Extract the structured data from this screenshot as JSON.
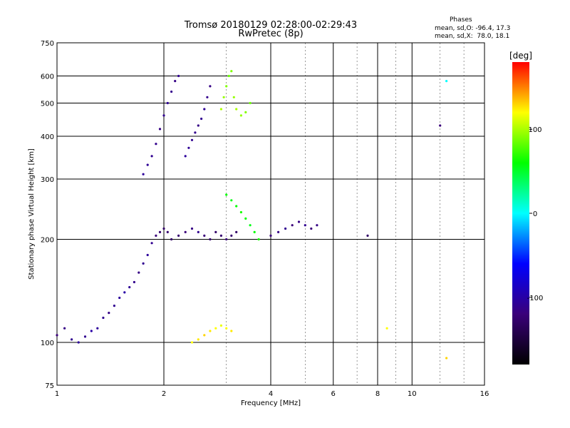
{
  "header": {
    "title": "Tromsø 20180129 02:28:00-02:29:43",
    "subtitle": "RwPretec (8p)"
  },
  "stats": {
    "heading": "Phases",
    "line_o": "mean, sd,O: -96.4, 17.3",
    "line_x": "mean, sd,X:  78.0, 18.1"
  },
  "colorbar": {
    "unit": "[deg]",
    "ticks": [
      "100",
      "0",
      "-100"
    ],
    "tick_values": [
      100,
      0,
      -100
    ],
    "range": [
      -180,
      180
    ],
    "stops": [
      "#000000",
      "#3a007a",
      "#0000ff",
      "#00ffff",
      "#00ff00",
      "#ffff00",
      "#ff0000"
    ]
  },
  "chart_data": {
    "type": "scatter",
    "xlabel": "Frequency [MHz]",
    "ylabel": "Stationary phase Virtual Height [km]",
    "x_scale": "log",
    "y_scale": "log",
    "xlim": [
      1,
      16
    ],
    "ylim": [
      75,
      750
    ],
    "x_ticks": [
      "1",
      "2",
      "4",
      "6",
      "8",
      "10",
      "16"
    ],
    "y_ticks": [
      "750",
      "600",
      "500",
      "400",
      "300",
      "200",
      "100",
      "75"
    ],
    "grid": true,
    "series": [
      {
        "points": [
          [
            1.0,
            105,
            -120
          ],
          [
            1.05,
            110,
            -115
          ],
          [
            1.1,
            102,
            -110
          ],
          [
            1.15,
            100,
            -105
          ],
          [
            1.2,
            104,
            -110
          ],
          [
            1.25,
            108,
            -100
          ],
          [
            1.3,
            110,
            -105
          ],
          [
            1.35,
            118,
            -110
          ],
          [
            1.4,
            122,
            -115
          ],
          [
            1.45,
            128,
            -110
          ],
          [
            1.5,
            135,
            -105
          ],
          [
            1.55,
            140,
            -100
          ],
          [
            1.6,
            145,
            -108
          ],
          [
            1.65,
            150,
            -112
          ],
          [
            1.7,
            160,
            -115
          ],
          [
            1.75,
            170,
            -110
          ],
          [
            1.8,
            180,
            -105
          ],
          [
            1.85,
            195,
            -110
          ],
          [
            1.9,
            205,
            -120
          ],
          [
            1.95,
            210,
            -125
          ],
          [
            2.0,
            215,
            -130
          ],
          [
            2.05,
            210,
            -125
          ]
        ]
      },
      {
        "points": [
          [
            1.75,
            310,
            -105
          ],
          [
            1.8,
            330,
            -108
          ],
          [
            1.85,
            350,
            -110
          ],
          [
            1.9,
            380,
            -112
          ],
          [
            1.95,
            420,
            -115
          ],
          [
            2.0,
            460,
            -110
          ],
          [
            2.05,
            500,
            -108
          ],
          [
            2.1,
            540,
            -112
          ],
          [
            2.15,
            580,
            -115
          ],
          [
            2.2,
            600,
            -110
          ]
        ]
      },
      {
        "points": [
          [
            2.3,
            350,
            -105
          ],
          [
            2.35,
            370,
            -108
          ],
          [
            2.4,
            390,
            -110
          ],
          [
            2.45,
            410,
            -112
          ],
          [
            2.5,
            430,
            -115
          ],
          [
            2.55,
            450,
            -110
          ],
          [
            2.6,
            480,
            -108
          ],
          [
            2.65,
            520,
            -112
          ],
          [
            2.7,
            560,
            -115
          ]
        ]
      },
      {
        "points": [
          [
            2.9,
            480,
            100
          ],
          [
            2.95,
            520,
            95
          ],
          [
            3.0,
            560,
            90
          ],
          [
            3.05,
            600,
            85
          ],
          [
            3.1,
            620,
            90
          ],
          [
            3.15,
            520,
            95
          ],
          [
            3.2,
            480,
            100
          ],
          [
            3.3,
            460,
            95
          ],
          [
            3.4,
            470,
            90
          ],
          [
            3.5,
            500,
            85
          ]
        ]
      },
      {
        "points": [
          [
            2.1,
            200,
            -130
          ],
          [
            2.2,
            205,
            -125
          ],
          [
            2.3,
            210,
            -120
          ],
          [
            2.4,
            215,
            -115
          ],
          [
            2.5,
            210,
            -110
          ],
          [
            2.6,
            205,
            -120
          ],
          [
            2.7,
            200,
            -125
          ],
          [
            2.8,
            210,
            -130
          ],
          [
            2.9,
            205,
            -125
          ],
          [
            3.0,
            200,
            -120
          ],
          [
            3.1,
            205,
            -125
          ],
          [
            3.2,
            210,
            -130
          ]
        ]
      },
      {
        "points": [
          [
            3.0,
            270,
            60
          ],
          [
            3.1,
            260,
            55
          ],
          [
            3.2,
            250,
            60
          ],
          [
            3.3,
            240,
            65
          ],
          [
            3.4,
            230,
            60
          ],
          [
            3.5,
            220,
            55
          ],
          [
            3.6,
            210,
            60
          ],
          [
            3.7,
            200,
            65
          ]
        ]
      },
      {
        "points": [
          [
            2.4,
            100,
            120
          ],
          [
            2.5,
            102,
            125
          ],
          [
            2.6,
            105,
            130
          ],
          [
            2.7,
            108,
            125
          ],
          [
            2.8,
            110,
            120
          ],
          [
            2.9,
            112,
            115
          ],
          [
            3.0,
            110,
            120
          ],
          [
            3.1,
            108,
            125
          ]
        ]
      },
      {
        "points": [
          [
            4.0,
            205,
            -120
          ],
          [
            4.2,
            210,
            -115
          ],
          [
            4.4,
            215,
            -110
          ],
          [
            4.6,
            220,
            -120
          ],
          [
            4.8,
            225,
            -115
          ],
          [
            5.0,
            220,
            -110
          ],
          [
            5.2,
            215,
            -120
          ],
          [
            5.4,
            220,
            -115
          ]
        ]
      },
      {
        "points": [
          [
            7.5,
            205,
            -130
          ],
          [
            8.5,
            110,
            120
          ],
          [
            12.0,
            430,
            -120
          ],
          [
            12.5,
            580,
            0
          ],
          [
            12.5,
            90,
            130
          ]
        ]
      }
    ]
  }
}
